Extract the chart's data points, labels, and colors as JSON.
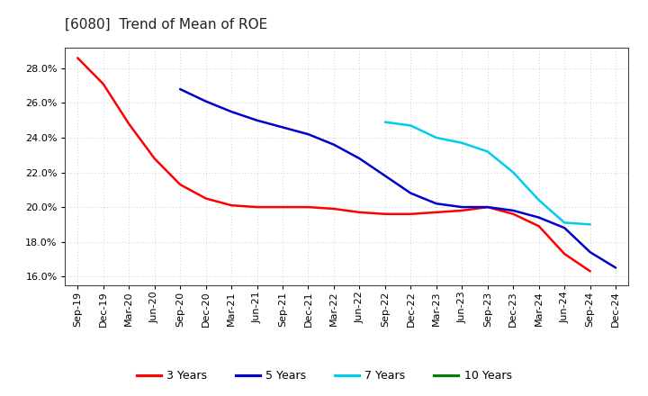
{
  "title": "[6080]  Trend of Mean of ROE",
  "ylim": [
    0.155,
    0.292
  ],
  "yticks": [
    0.16,
    0.18,
    0.2,
    0.22,
    0.24,
    0.26,
    0.28
  ],
  "x_labels": [
    "Sep-19",
    "Dec-19",
    "Mar-20",
    "Jun-20",
    "Sep-20",
    "Dec-20",
    "Mar-21",
    "Jun-21",
    "Sep-21",
    "Dec-21",
    "Mar-22",
    "Jun-22",
    "Sep-22",
    "Dec-22",
    "Mar-23",
    "Jun-23",
    "Sep-23",
    "Dec-23",
    "Mar-24",
    "Jun-24",
    "Sep-24",
    "Dec-24"
  ],
  "series_3y": {
    "label": "3 Years",
    "color": "#FF0000",
    "data_x": [
      0,
      1,
      2,
      3,
      4,
      5,
      6,
      7,
      8,
      9,
      10,
      11,
      12,
      13,
      14,
      15,
      16,
      17,
      18,
      19,
      20
    ],
    "data_y": [
      0.286,
      0.271,
      0.248,
      0.228,
      0.213,
      0.205,
      0.201,
      0.2,
      0.2,
      0.2,
      0.199,
      0.197,
      0.196,
      0.196,
      0.197,
      0.198,
      0.2,
      0.196,
      0.189,
      0.173,
      0.163
    ]
  },
  "series_5y": {
    "label": "5 Years",
    "color": "#0000CD",
    "data_x": [
      4,
      5,
      6,
      7,
      8,
      9,
      10,
      11,
      12,
      13,
      14,
      15,
      16,
      17,
      18,
      19,
      20,
      21
    ],
    "data_y": [
      0.268,
      0.261,
      0.255,
      0.25,
      0.246,
      0.242,
      0.236,
      0.228,
      0.218,
      0.208,
      0.202,
      0.2,
      0.2,
      0.198,
      0.194,
      0.188,
      0.174,
      0.165
    ]
  },
  "series_7y": {
    "label": "7 Years",
    "color": "#00CCEE",
    "data_x": [
      12,
      13,
      14,
      15,
      16,
      17,
      18,
      19,
      20
    ],
    "data_y": [
      0.249,
      0.247,
      0.24,
      0.237,
      0.232,
      0.22,
      0.204,
      0.191,
      0.19
    ]
  },
  "series_10y": {
    "label": "10 Years",
    "color": "#008000",
    "data_x": [],
    "data_y": []
  },
  "background_color": "#ffffff",
  "grid_color": "#bbbbbb",
  "title_fontsize": 11,
  "tick_fontsize": 8,
  "legend_fontsize": 9,
  "linewidth": 1.8
}
